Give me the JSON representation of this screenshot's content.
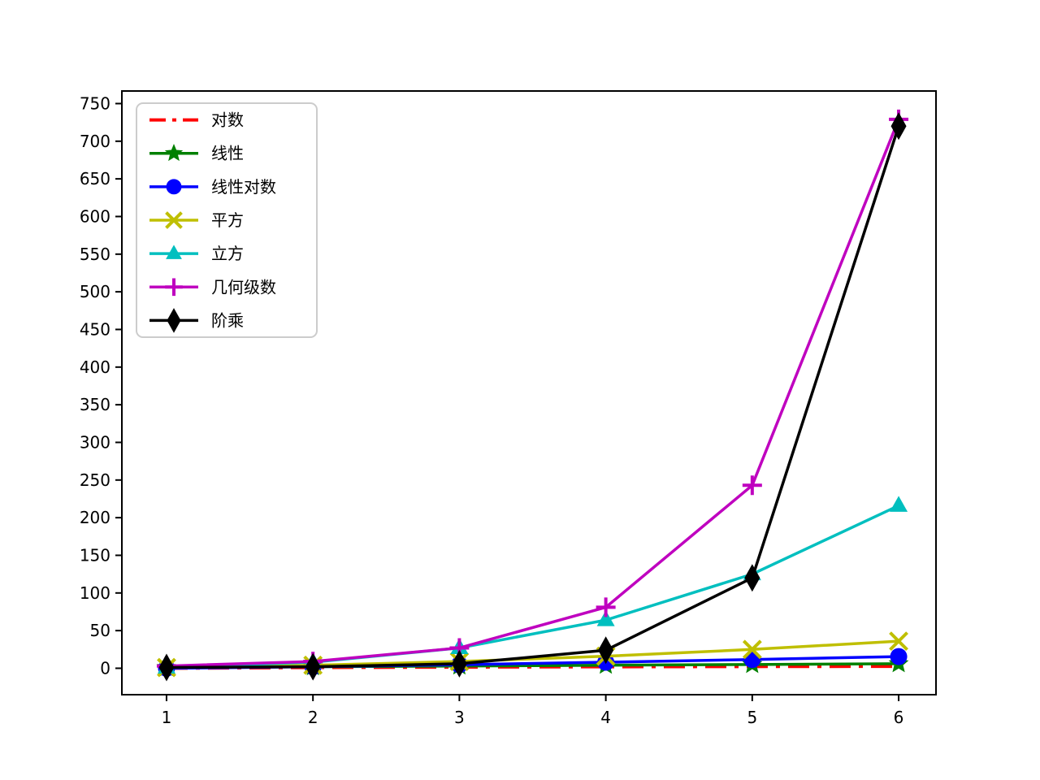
{
  "chart_data": {
    "type": "line",
    "title": "",
    "xlabel": "",
    "ylabel": "",
    "x": [
      1,
      2,
      3,
      4,
      5,
      6
    ],
    "series": [
      {
        "name": "对数",
        "color": "#ff0000",
        "linestyle": "dashdot",
        "marker": "none",
        "values": [
          0,
          1,
          1.58,
          2,
          2.32,
          2.58
        ]
      },
      {
        "name": "线性",
        "color": "#008000",
        "linestyle": "solid",
        "marker": "star",
        "values": [
          1,
          2,
          3,
          4,
          5,
          6
        ]
      },
      {
        "name": "线性对数",
        "color": "#0000ff",
        "linestyle": "solid",
        "marker": "circle",
        "values": [
          0,
          2,
          4.75,
          8,
          11.61,
          15.51
        ]
      },
      {
        "name": "平方",
        "color": "#bfbf00",
        "linestyle": "solid",
        "marker": "x",
        "values": [
          1,
          4,
          9,
          16,
          25,
          36
        ]
      },
      {
        "name": "立方",
        "color": "#00bfbf",
        "linestyle": "solid",
        "marker": "triangle",
        "values": [
          1,
          8,
          27,
          64,
          125,
          216
        ]
      },
      {
        "name": "几何级数",
        "color": "#bf00bf",
        "linestyle": "solid",
        "marker": "plus",
        "values": [
          3,
          9,
          27,
          81,
          243,
          729
        ]
      },
      {
        "name": "阶乘",
        "color": "#000000",
        "linestyle": "solid",
        "marker": "diamond",
        "values": [
          1,
          2,
          6,
          24,
          120,
          720
        ]
      }
    ],
    "xticks": [
      "1",
      "2",
      "3",
      "4",
      "5",
      "6"
    ],
    "yticks": [
      "0",
      "50",
      "100",
      "150",
      "200",
      "250",
      "300",
      "350",
      "400",
      "450",
      "500",
      "550",
      "600",
      "650",
      "700",
      "750"
    ],
    "ytick_values": [
      0,
      50,
      100,
      150,
      200,
      250,
      300,
      350,
      400,
      450,
      500,
      550,
      600,
      650,
      700,
      750
    ],
    "xtick_values": [
      1,
      2,
      3,
      4,
      5,
      6
    ],
    "xlim": [
      0.695,
      6.255
    ],
    "ylim": [
      -35.1,
      766.7
    ],
    "grid": false,
    "legend_position": "upper left",
    "legend_border_color": "#cccccc",
    "axes_color": "#000000",
    "background_color": "#ffffff"
  }
}
